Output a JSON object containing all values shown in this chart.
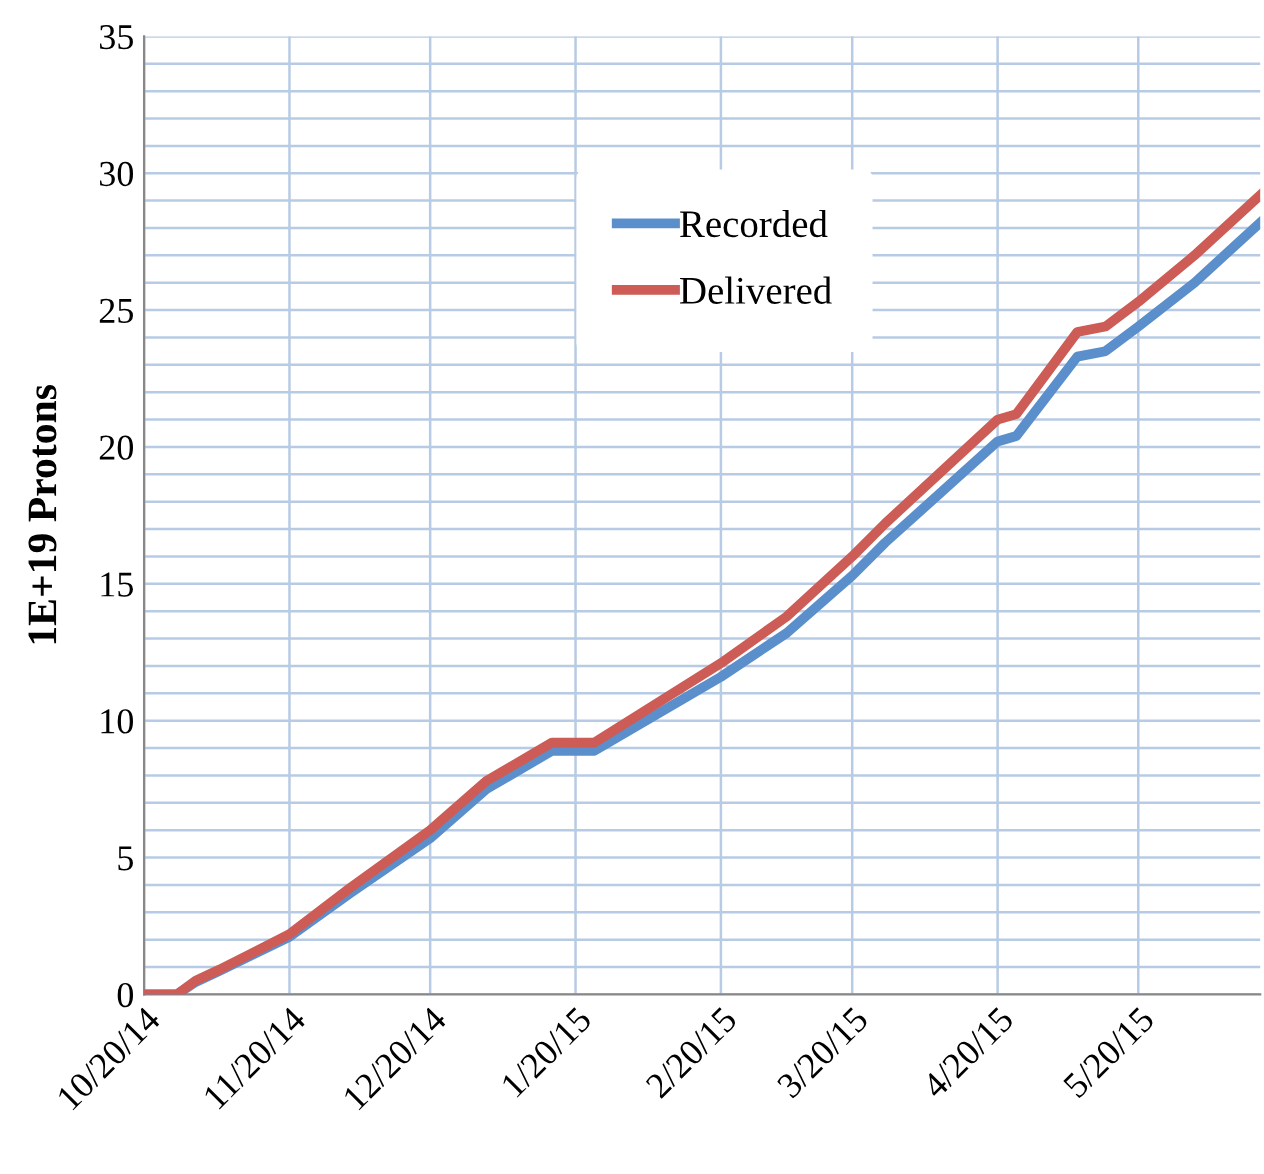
{
  "chart_data": {
    "type": "line",
    "ylabel": "1E+19 Protons",
    "x": [
      "2014-10-20",
      "2014-10-27",
      "2014-10-31",
      "2014-11-05",
      "2014-11-20",
      "2014-12-03",
      "2014-12-20",
      "2015-01-01",
      "2015-01-15",
      "2015-01-24",
      "2015-02-20",
      "2015-03-06",
      "2015-03-20",
      "2015-03-27",
      "2015-04-20",
      "2015-04-24",
      "2015-05-07",
      "2015-05-13",
      "2015-05-20",
      "2015-06-01",
      "2015-06-15"
    ],
    "series": [
      {
        "name": "Recorded",
        "color": "#5b8fcc",
        "values": [
          0,
          0,
          0.45,
          0.85,
          2.1,
          3.7,
          5.7,
          7.5,
          8.9,
          8.9,
          11.6,
          13.2,
          15.3,
          16.5,
          20.2,
          20.4,
          23.3,
          23.5,
          24.4,
          26.0,
          28.2
        ]
      },
      {
        "name": "Delivered",
        "color": "#cc5c55",
        "values": [
          0,
          0,
          0.5,
          0.9,
          2.2,
          3.9,
          6.0,
          7.8,
          9.2,
          9.2,
          12.1,
          13.8,
          16.0,
          17.2,
          21.0,
          21.2,
          24.2,
          24.4,
          25.3,
          27.0,
          29.2
        ]
      }
    ],
    "xlim": [
      "2014-10-20",
      "2015-06-15"
    ],
    "xticks": [
      {
        "value": "2014-10-20",
        "label": "10/20/14"
      },
      {
        "value": "2014-11-20",
        "label": "11/20/14"
      },
      {
        "value": "2014-12-20",
        "label": "12/20/14"
      },
      {
        "value": "2015-01-20",
        "label": "1/20/15"
      },
      {
        "value": "2015-02-20",
        "label": "2/20/15"
      },
      {
        "value": "2015-03-20",
        "label": "3/20/15"
      },
      {
        "value": "2015-04-20",
        "label": "4/20/15"
      },
      {
        "value": "2015-05-20",
        "label": "5/20/15"
      }
    ],
    "ylim": [
      0,
      35
    ],
    "yticks": [
      0,
      {
        "value": 1,
        "label": null
      },
      {
        "value": 2,
        "label": null
      },
      {
        "value": 3,
        "label": null
      },
      {
        "value": 4,
        "label": null
      },
      5,
      {
        "value": 6,
        "label": null
      },
      {
        "value": 7,
        "label": null
      },
      {
        "value": 8,
        "label": null
      },
      {
        "value": 9,
        "label": null
      },
      10,
      {
        "value": 11,
        "label": null
      },
      {
        "value": 12,
        "label": null
      },
      {
        "value": 13,
        "label": null
      },
      {
        "value": 14,
        "label": null
      },
      15,
      {
        "value": 16,
        "label": null
      },
      {
        "value": 17,
        "label": null
      },
      {
        "value": 18,
        "label": null
      },
      {
        "value": 19,
        "label": null
      },
      20,
      {
        "value": 21,
        "label": null
      },
      {
        "value": 22,
        "label": null
      },
      {
        "value": 23,
        "label": null
      },
      {
        "value": 24,
        "label": null
      },
      25,
      {
        "value": 26,
        "label": null
      },
      {
        "value": 27,
        "label": null
      },
      {
        "value": 28,
        "label": null
      },
      {
        "value": 29,
        "label": null
      },
      30,
      {
        "value": 31,
        "label": null
      },
      {
        "value": 32,
        "label": null
      },
      {
        "value": 33,
        "label": null
      },
      {
        "value": 34,
        "label": null
      },
      35
    ],
    "grid": true,
    "legend": "top",
    "marker": "none",
    "line_style": "solid"
  }
}
